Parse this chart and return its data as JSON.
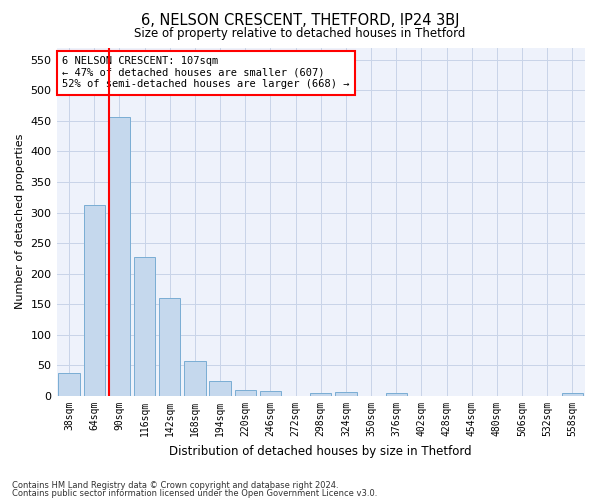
{
  "title": "6, NELSON CRESCENT, THETFORD, IP24 3BJ",
  "subtitle": "Size of property relative to detached houses in Thetford",
  "xlabel": "Distribution of detached houses by size in Thetford",
  "ylabel": "Number of detached properties",
  "bar_color": "#c5d8ed",
  "bar_edge_color": "#7aadd4",
  "background_color": "#eef2fb",
  "grid_color": "#c8d4e8",
  "categories": [
    "38sqm",
    "64sqm",
    "90sqm",
    "116sqm",
    "142sqm",
    "168sqm",
    "194sqm",
    "220sqm",
    "246sqm",
    "272sqm",
    "298sqm",
    "324sqm",
    "350sqm",
    "376sqm",
    "402sqm",
    "428sqm",
    "454sqm",
    "480sqm",
    "506sqm",
    "532sqm",
    "558sqm"
  ],
  "values": [
    38,
    313,
    457,
    227,
    160,
    57,
    25,
    10,
    9,
    0,
    5,
    6,
    0,
    5,
    0,
    0,
    0,
    0,
    0,
    0,
    5
  ],
  "ylim": [
    0,
    570
  ],
  "yticks": [
    0,
    50,
    100,
    150,
    200,
    250,
    300,
    350,
    400,
    450,
    500,
    550
  ],
  "property_label": "6 NELSON CRESCENT: 107sqm",
  "smaller_pct": 47,
  "smaller_count": 607,
  "larger_pct": 52,
  "larger_count": 668,
  "marker_bin_index": 2,
  "footnote1": "Contains HM Land Registry data © Crown copyright and database right 2024.",
  "footnote2": "Contains public sector information licensed under the Open Government Licence v3.0."
}
